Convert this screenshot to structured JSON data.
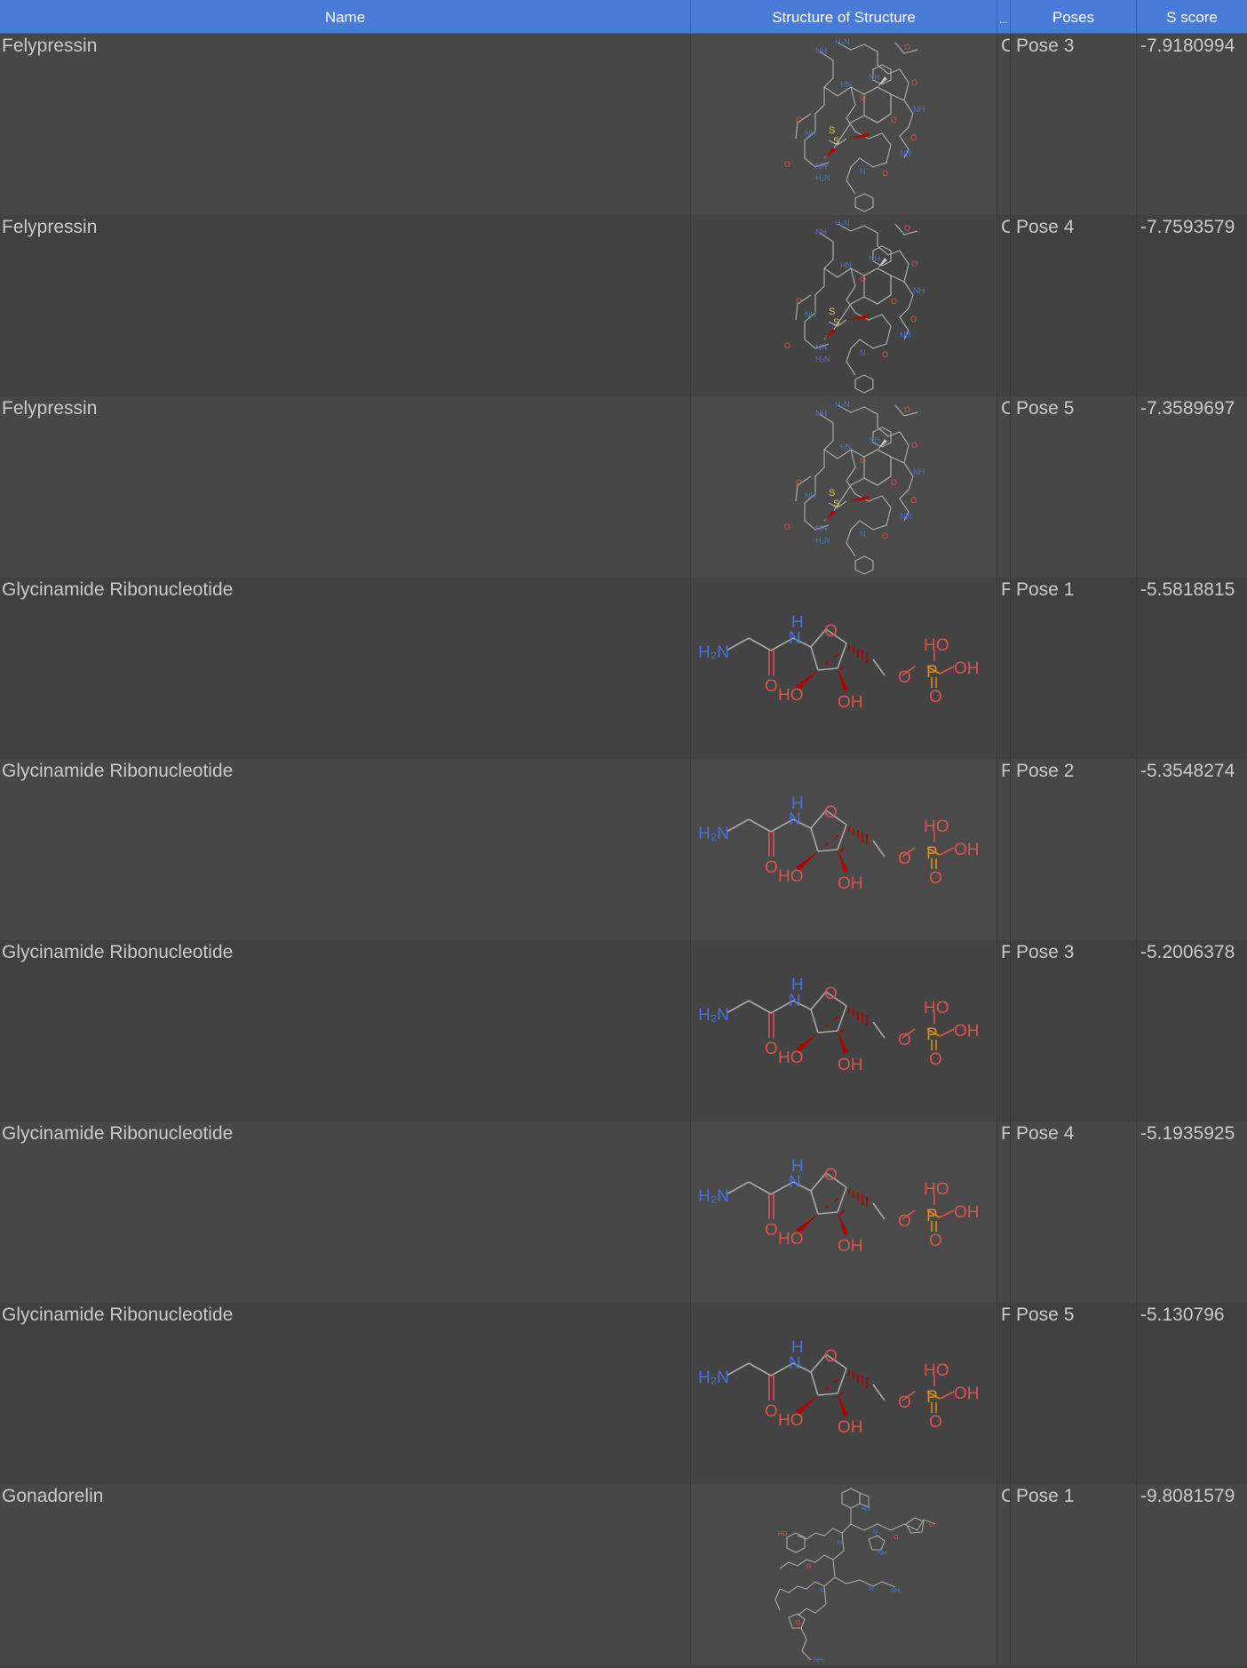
{
  "table": {
    "columns": [
      "Name",
      "Structure of Structure",
      "...",
      "Poses",
      "S score"
    ],
    "rows": [
      {
        "name": "Felypressin",
        "class_initial": "C",
        "pose": "Pose 3",
        "score": "-7.9180994",
        "mol": "felypressin"
      },
      {
        "name": "Felypressin",
        "class_initial": "C",
        "pose": "Pose 4",
        "score": "-7.7593579",
        "mol": "felypressin"
      },
      {
        "name": "Felypressin",
        "class_initial": "C",
        "pose": "Pose 5",
        "score": "-7.3589697",
        "mol": "felypressin"
      },
      {
        "name": "Glycinamide Ribonucleotide",
        "class_initial": "F",
        "pose": "Pose 1",
        "score": "-5.5818815",
        "mol": "gar"
      },
      {
        "name": "Glycinamide Ribonucleotide",
        "class_initial": "F",
        "pose": "Pose 2",
        "score": "-5.3548274",
        "mol": "gar"
      },
      {
        "name": "Glycinamide Ribonucleotide",
        "class_initial": "F",
        "pose": "Pose 3",
        "score": "-5.2006378",
        "mol": "gar"
      },
      {
        "name": "Glycinamide Ribonucleotide",
        "class_initial": "F",
        "pose": "Pose 4",
        "score": "-5.1935925",
        "mol": "gar"
      },
      {
        "name": "Glycinamide Ribonucleotide",
        "class_initial": "F",
        "pose": "Pose 5",
        "score": "-5.130796",
        "mol": "gar"
      },
      {
        "name": "Gonadorelin",
        "class_initial": "C",
        "pose": "Pose 1",
        "score": "-9.8081579",
        "mol": "gonadorelin"
      }
    ]
  },
  "gar_labels": {
    "nh_h": "H",
    "nh_n": "N",
    "h2n": "H₂N",
    "ring_o": "O",
    "carbonyl_o": "O",
    "ho_left": "HO",
    "oh_bottom": "OH",
    "ester_o": "O",
    "p": "P",
    "p_ho": "HO",
    "p_oh": "OH",
    "p_o": "O"
  },
  "colors": {
    "header": "#4a7bd8",
    "nitrogen": "#4a6fe0",
    "oxygen": "#e05050",
    "phosphorus": "#e08a1a",
    "sulfur": "#d8c83a",
    "bond": "#a8a8a8",
    "wedge": "#b00000"
  }
}
